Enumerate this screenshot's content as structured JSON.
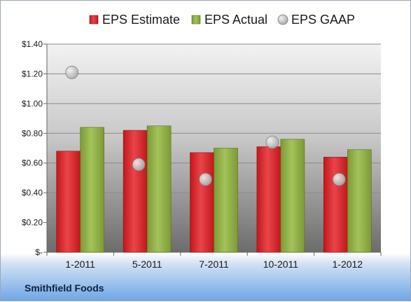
{
  "company_label": "Smithfield Foods",
  "colors": {
    "estimate": "#c3171b",
    "actual": "#7d9a36",
    "gaap": "#a9a9a9",
    "plot_background_top": "#f2f2f2",
    "plot_background_bottom": "#6c6c6c"
  },
  "chart_data": {
    "type": "bar",
    "categories": [
      "1-2011",
      "5-2011",
      "7-2011",
      "10-2011",
      "1-2012"
    ],
    "series": [
      {
        "name": "EPS Estimate",
        "kind": "bar",
        "values": [
          0.68,
          0.82,
          0.67,
          0.71,
          0.64
        ]
      },
      {
        "name": "EPS Actual",
        "kind": "bar",
        "values": [
          0.84,
          0.85,
          0.7,
          0.76,
          0.69
        ]
      },
      {
        "name": "EPS GAAP",
        "kind": "marker",
        "values": [
          1.21,
          0.59,
          0.49,
          0.74,
          0.49
        ]
      }
    ],
    "ylim": [
      0,
      1.4
    ],
    "yticks": [
      0,
      0.2,
      0.4,
      0.6,
      0.8,
      1.0,
      1.2,
      1.4
    ],
    "ytick_labels": [
      "$-",
      "$0.20",
      "$0.40",
      "$0.60",
      "$0.80",
      "$1.00",
      "$1.20",
      "$1.40"
    ],
    "grid": true,
    "legend_position": "top"
  }
}
